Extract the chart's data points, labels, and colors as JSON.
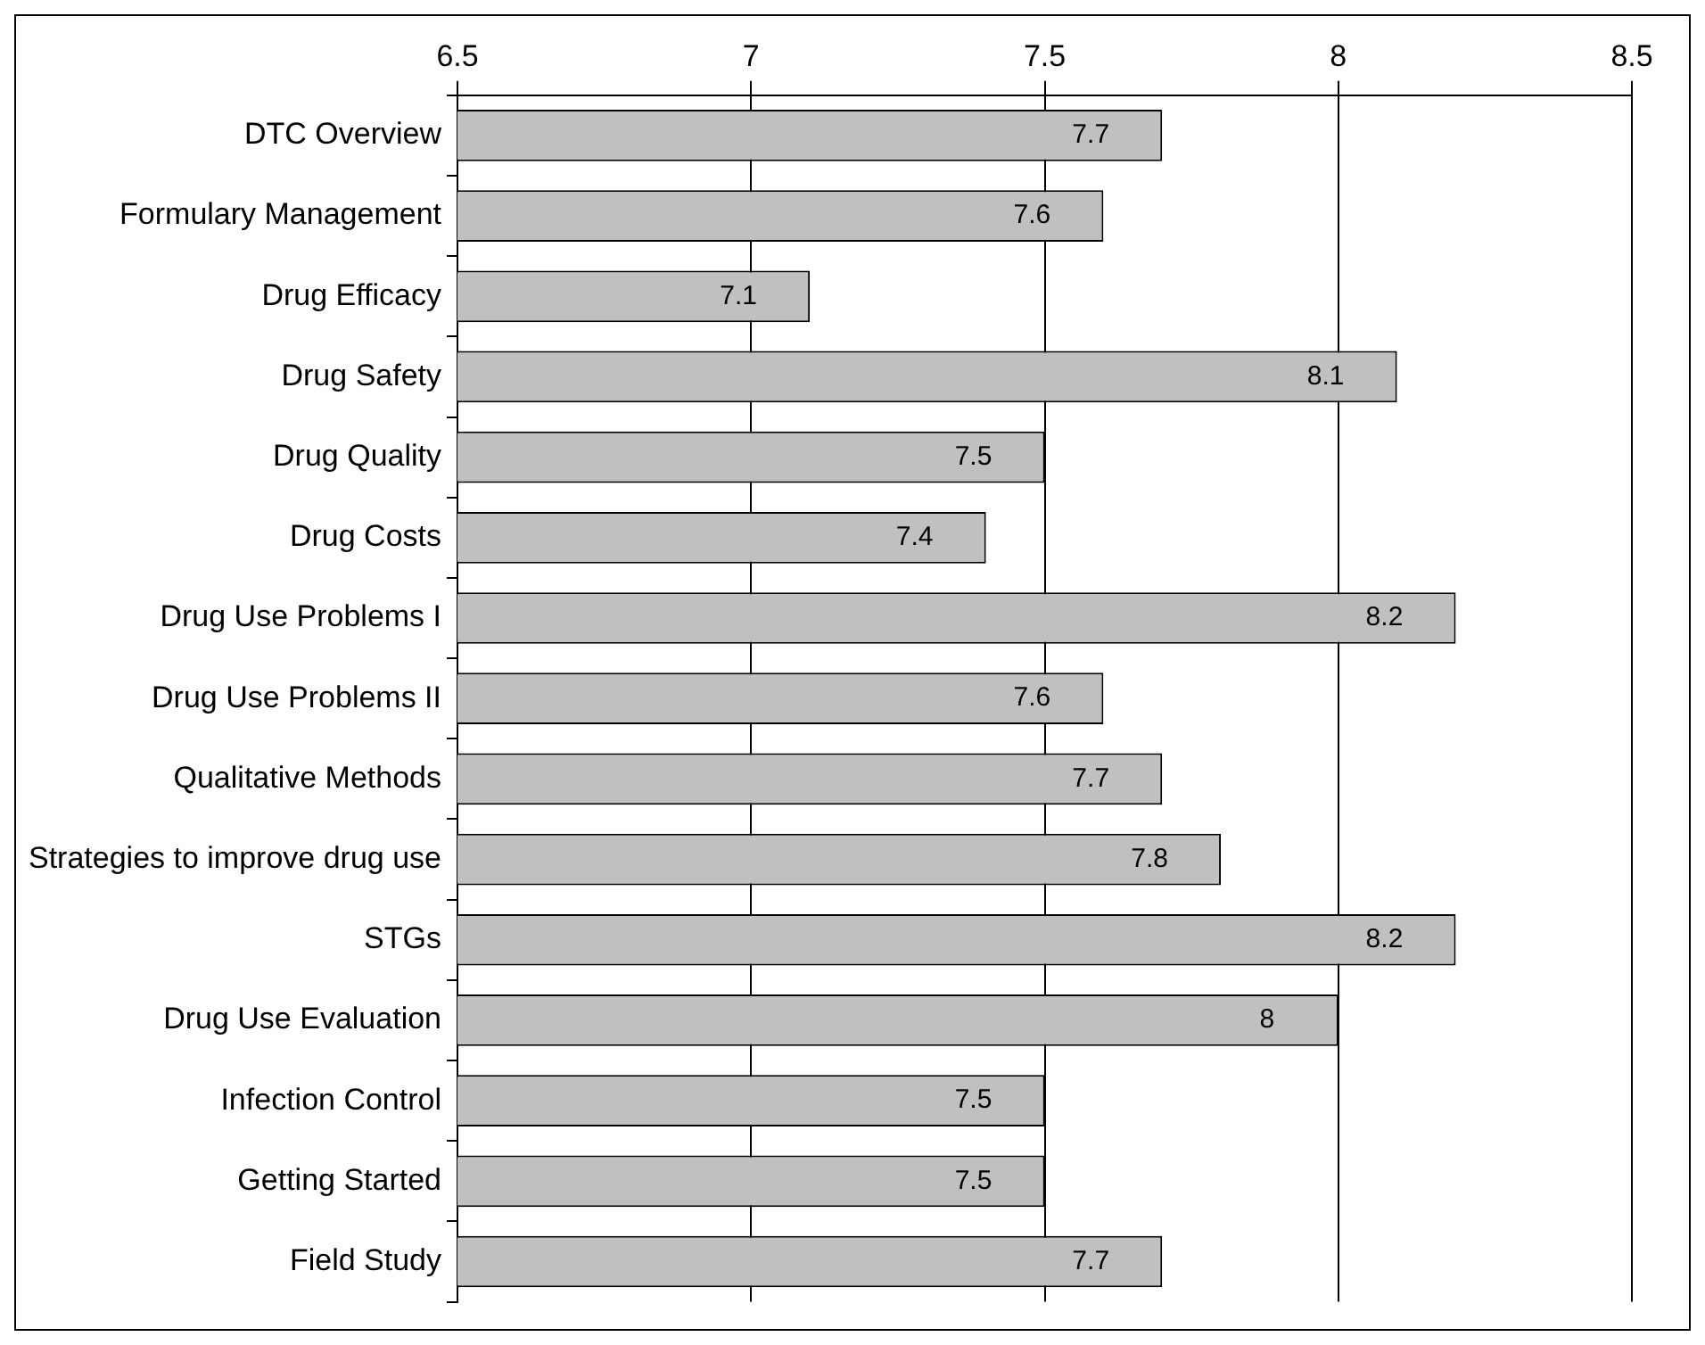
{
  "chart_data": {
    "type": "bar",
    "orientation": "horizontal",
    "categories": [
      "DTC Overview",
      "Formulary Management",
      "Drug Efficacy",
      "Drug Safety",
      "Drug Quality",
      "Drug Costs",
      "Drug Use Problems I",
      "Drug Use Problems II",
      "Qualitative Methods",
      "Strategies to improve drug use",
      "STGs",
      "Drug Use Evaluation",
      "Infection Control",
      "Getting Started",
      "Field Study"
    ],
    "values": [
      7.7,
      7.6,
      7.1,
      8.1,
      7.5,
      7.4,
      8.2,
      7.6,
      7.7,
      7.8,
      8.2,
      8,
      7.5,
      7.5,
      7.7
    ],
    "color": "#c0c0c0",
    "xlim": [
      6.5,
      8.5
    ],
    "xticks": [
      6.5,
      7,
      7.5,
      8,
      8.5
    ],
    "grid": "x",
    "data_labels": true,
    "legend": false
  }
}
